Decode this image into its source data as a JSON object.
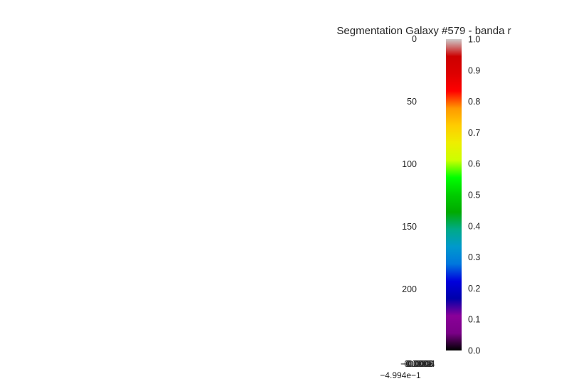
{
  "chart_data": {
    "type": "heatmap",
    "title": "Segmentation Galaxy #579 - banda r",
    "xlabel": "",
    "ylabel": "",
    "y_ticks": [
      "0",
      "50",
      "100",
      "150",
      "200"
    ],
    "y_range": [
      0,
      250
    ],
    "x_tick_labels": [
      "−0.0008",
      "−0.0006",
      "−0.0004",
      "−0.0002",
      "0.0000"
    ],
    "x_offset_label": "−4.994e−1",
    "colorbar": {
      "colormap": "nipy_spectral",
      "range": [
        0.0,
        1.0
      ],
      "ticks": [
        "0.0",
        "0.1",
        "0.2",
        "0.3",
        "0.4",
        "0.5",
        "0.6",
        "0.7",
        "0.8",
        "0.9",
        "1.0"
      ],
      "stops": [
        "#000000",
        "#7a0087",
        "#8a0099",
        "#0000aa",
        "#0000dd",
        "#0077dd",
        "#0099cc",
        "#00aa88",
        "#00aa00",
        "#00cc00",
        "#00ff00",
        "#ccff00",
        "#eeee00",
        "#ffcc00",
        "#ff9900",
        "#ff0000",
        "#dd0000",
        "#cc0000",
        "#cccccc"
      ]
    },
    "grid": false
  }
}
